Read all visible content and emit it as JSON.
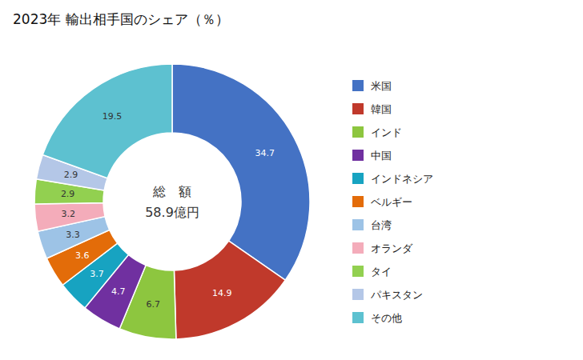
{
  "chart_data": {
    "type": "pie",
    "title": "2023年 輸出相手国のシェア（％）",
    "annotations": [
      "総　額",
      "58.9億円"
    ],
    "categories": [
      "米国",
      "韓国",
      "インド",
      "中国",
      "インドネシア",
      "ベルギー",
      "台湾",
      "オランダ",
      "タイ",
      "パキスタン",
      "その他"
    ],
    "values": [
      34.7,
      14.9,
      6.7,
      4.7,
      3.7,
      3.6,
      3.3,
      3.2,
      2.9,
      2.9,
      19.5
    ],
    "colors": [
      "#4472C4",
      "#C0392B",
      "#8DC63F",
      "#7030A0",
      "#17A3C1",
      "#E36C09",
      "#9DC3E6",
      "#F4ACBA",
      "#92D050",
      "#B4C7E7",
      "#5DC1D0"
    ],
    "data_labels": true,
    "legend": "right"
  }
}
